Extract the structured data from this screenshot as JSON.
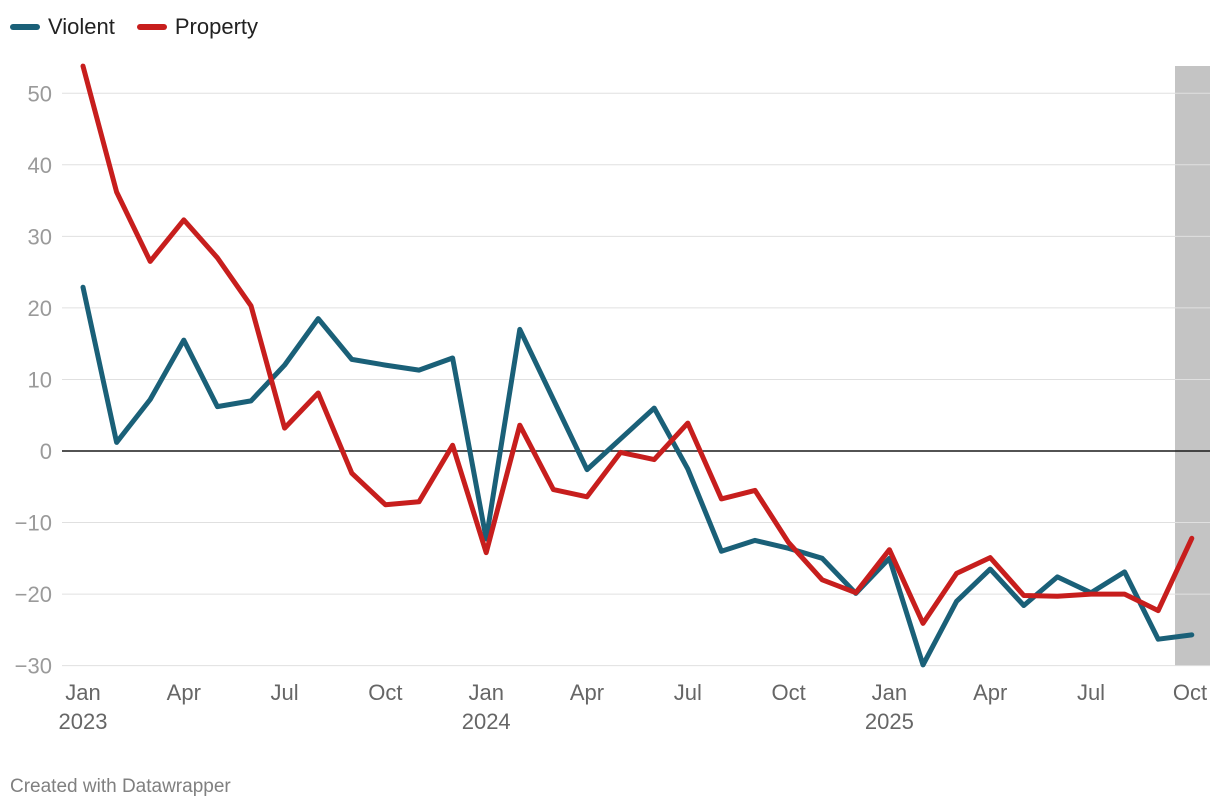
{
  "chart_data": {
    "type": "line",
    "x": [
      "2023-01",
      "2023-02",
      "2023-03",
      "2023-04",
      "2023-05",
      "2023-06",
      "2023-07",
      "2023-08",
      "2023-09",
      "2023-10",
      "2023-11",
      "2023-12",
      "2024-01",
      "2024-02",
      "2024-03",
      "2024-04",
      "2024-05",
      "2024-06",
      "2024-07",
      "2024-08",
      "2024-09",
      "2024-10",
      "2024-11",
      "2024-12",
      "2025-01",
      "2025-02",
      "2025-03",
      "2025-04",
      "2025-05",
      "2025-06",
      "2025-07",
      "2025-08",
      "2025-09",
      "2025-10"
    ],
    "series": [
      {
        "name": "Violent",
        "color": "#1a6078",
        "values": [
          22.9,
          1.2,
          7.2,
          15.5,
          6.2,
          7.0,
          12.0,
          18.5,
          12.8,
          12.0,
          11.3,
          13.0,
          -12.3,
          17.0,
          7.2,
          -2.6,
          1.7,
          6.0,
          -2.5,
          -14.0,
          -12.5,
          -13.6,
          -15.0,
          -19.9,
          -15.0,
          -29.9,
          -21.0,
          -16.5,
          -21.6,
          -17.6,
          -19.8,
          -16.9,
          -26.3,
          -25.7
        ]
      },
      {
        "name": "Property",
        "color": "#c71e1d",
        "values": [
          53.8,
          36.2,
          26.5,
          32.3,
          27.0,
          20.3,
          3.2,
          8.1,
          -3.1,
          -7.5,
          -7.1,
          0.8,
          -14.2,
          3.6,
          -5.4,
          -6.4,
          -0.2,
          -1.2,
          3.9,
          -6.7,
          -5.5,
          -12.8,
          -18.0,
          -19.8,
          -13.8,
          -24.1,
          -17.1,
          -14.9,
          -20.2,
          -20.3,
          -20.0,
          -20.0,
          -22.3,
          -12.2
        ]
      }
    ],
    "y_ticks": [
      "50",
      "40",
      "30",
      "20",
      "10",
      "0",
      "−10",
      "−20",
      "−30"
    ],
    "y_tick_values": [
      50,
      40,
      30,
      20,
      10,
      0,
      -10,
      -20,
      -30
    ],
    "ylim": [
      -30,
      55
    ],
    "x_ticks": [
      {
        "month": "Jan",
        "year": "2023",
        "index": 0
      },
      {
        "month": "Apr",
        "year": "",
        "index": 3
      },
      {
        "month": "Jul",
        "year": "",
        "index": 6
      },
      {
        "month": "Oct",
        "year": "",
        "index": 9
      },
      {
        "month": "Jan",
        "year": "2024",
        "index": 12
      },
      {
        "month": "Apr",
        "year": "",
        "index": 15
      },
      {
        "month": "Jul",
        "year": "",
        "index": 18
      },
      {
        "month": "Oct",
        "year": "",
        "index": 21
      },
      {
        "month": "Jan",
        "year": "2025",
        "index": 24
      },
      {
        "month": "Apr",
        "year": "",
        "index": 27
      },
      {
        "month": "Jul",
        "year": "",
        "index": 30
      },
      {
        "month": "Oct",
        "year": "",
        "index": 33
      }
    ],
    "highlight_start_index": 32.5,
    "highlight_color": "#c4c4c4",
    "grid": true,
    "legend_position": "top-left",
    "title": "",
    "xlabel": "",
    "ylabel": ""
  },
  "credit": "Created with Datawrapper"
}
